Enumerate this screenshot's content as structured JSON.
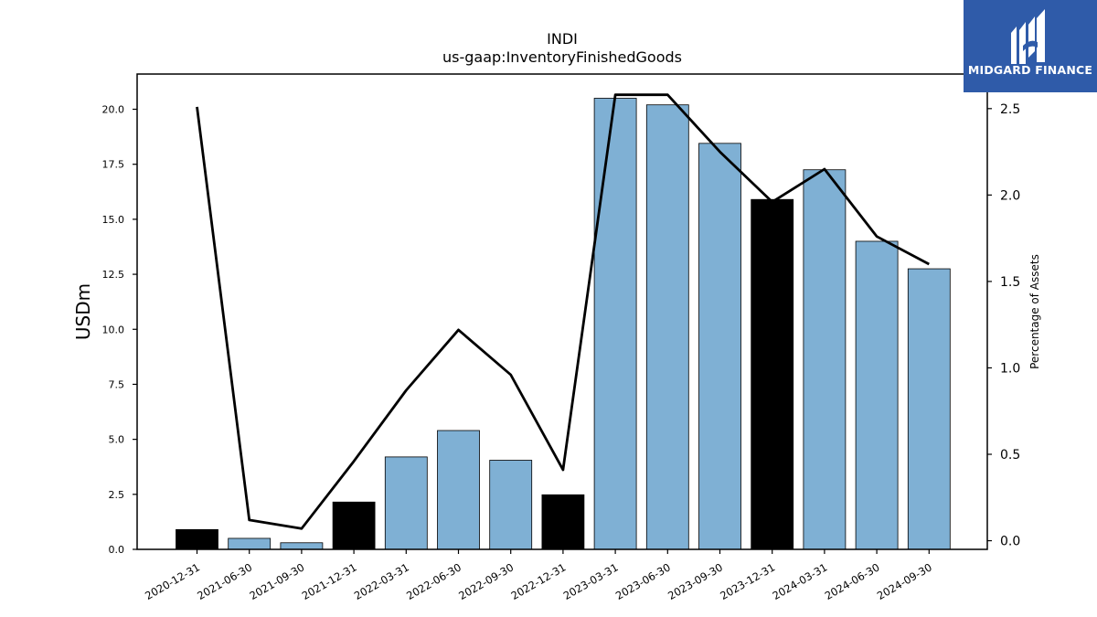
{
  "chart_data": {
    "type": "bar",
    "title": "INDI",
    "subtitle": "us-gaap:InventoryFinishedGoods",
    "ylabel": "USDm",
    "y2label": "Percentage of Assets",
    "ylim": [
      0,
      21.6
    ],
    "y2lim": [
      -0.05,
      2.7
    ],
    "yticks": [
      "0.0",
      "2.5",
      "5.0",
      "7.5",
      "10.0",
      "12.5",
      "15.0",
      "17.5",
      "20.0"
    ],
    "y2ticks": [
      "0.0",
      "0.5",
      "1.0",
      "1.5",
      "2.0",
      "2.5"
    ],
    "categories": [
      "2020-12-31",
      "2021-06-30",
      "2021-09-30",
      "2021-12-31",
      "2022-03-31",
      "2022-06-30",
      "2022-09-30",
      "2022-12-31",
      "2023-03-31",
      "2023-06-30",
      "2023-09-30",
      "2023-12-31",
      "2024-03-31",
      "2024-06-30",
      "2024-09-30"
    ],
    "series": [
      {
        "values": [
          0.9,
          0.5,
          0.3,
          2.15,
          4.2,
          5.4,
          4.05,
          2.48,
          20.5,
          20.2,
          18.45,
          15.9,
          17.25,
          14.0,
          12.75
        ],
        "colors": [
          "#000000",
          "#7fb0d4",
          "#7fb0d4",
          "#000000",
          "#7fb0d4",
          "#7fb0d4",
          "#7fb0d4",
          "#000000",
          "#7fb0d4",
          "#7fb0d4",
          "#7fb0d4",
          "#000000",
          "#7fb0d4",
          "#7fb0d4",
          "#7fb0d4"
        ]
      },
      {
        "type": "line",
        "axis": "right",
        "color": "#000000",
        "values": [
          2.51,
          0.12,
          0.07,
          0.46,
          0.87,
          1.22,
          0.96,
          0.41,
          2.58,
          2.58,
          2.25,
          1.96,
          2.15,
          1.76,
          1.6
        ]
      }
    ],
    "grid": false
  },
  "logo": {
    "text": "MIDGARD FINANCE",
    "background": "#2f5ba9"
  }
}
